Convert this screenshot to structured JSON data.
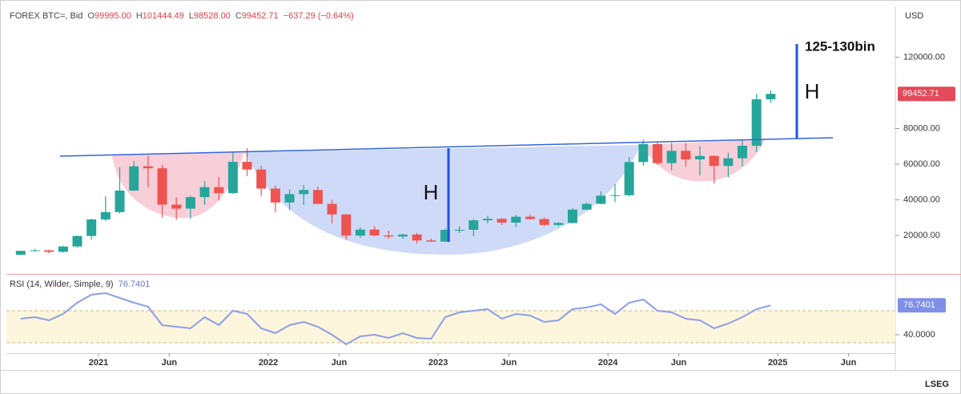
{
  "header": {
    "symbol": "FOREX BTC=, Bid",
    "ohlc": [
      {
        "label": "O",
        "value": "99995.00"
      },
      {
        "label": "H",
        "value": "101444.49"
      },
      {
        "label": "L",
        "value": "98528.00"
      },
      {
        "label": "C",
        "value": "99452.71"
      }
    ],
    "change": "−637.29 (−0.64%)"
  },
  "axis_unit": "USD",
  "logo": "LSEG",
  "chart_data": [
    {
      "type": "candlestick",
      "categories": [
        "2020-07",
        "2020-08",
        "2020-09",
        "2020-10",
        "2020-11",
        "2020-12",
        "2021-01",
        "2021-02",
        "2021-03",
        "2021-04",
        "2021-05",
        "2021-06",
        "2021-07",
        "2021-08",
        "2021-09",
        "2021-10",
        "2021-11",
        "2021-12",
        "2022-01",
        "2022-02",
        "2022-03",
        "2022-04",
        "2022-05",
        "2022-06",
        "2022-07",
        "2022-08",
        "2022-09",
        "2022-10",
        "2022-11",
        "2022-12",
        "2023-01",
        "2023-02",
        "2023-03",
        "2023-04",
        "2023-05",
        "2023-06",
        "2023-07",
        "2023-08",
        "2023-09",
        "2023-10",
        "2023-11",
        "2023-12",
        "2024-01",
        "2024-02",
        "2024-03",
        "2024-04",
        "2024-05",
        "2024-06",
        "2024-07",
        "2024-08",
        "2024-09",
        "2024-10",
        "2024-11",
        "2024-12"
      ],
      "open": [
        9130,
        11350,
        11650,
        10780,
        13800,
        19700,
        28990,
        33100,
        45200,
        58800,
        57700,
        37300,
        35040,
        41500,
        47100,
        43800,
        61300,
        57000,
        46300,
        38500,
        43200,
        45500,
        37700,
        31800,
        19900,
        23300,
        20000,
        19400,
        20500,
        17200,
        16550,
        23100,
        23150,
        28500,
        29300,
        27200,
        30500,
        29200,
        25900,
        27000,
        34500,
        37700,
        42300,
        42600,
        61200,
        71300,
        60600,
        67500,
        62700,
        64600,
        59000,
        63300,
        70300,
        96400
      ],
      "high": [
        11400,
        12470,
        12050,
        14100,
        19900,
        29300,
        41950,
        58350,
        61800,
        64850,
        59500,
        41300,
        42300,
        50500,
        52900,
        66900,
        69000,
        59100,
        48000,
        45800,
        48200,
        47400,
        40000,
        31900,
        24600,
        25200,
        22700,
        21000,
        21400,
        18300,
        23900,
        25200,
        29200,
        31000,
        29800,
        31400,
        31800,
        30200,
        27500,
        35200,
        38400,
        44700,
        48900,
        64000,
        73800,
        72700,
        71900,
        71900,
        70000,
        65000,
        66400,
        73600,
        99500,
        101444.49
      ],
      "low": [
        9000,
        10900,
        9900,
        10400,
        13200,
        17600,
        28100,
        32300,
        45000,
        47000,
        30000,
        28800,
        29300,
        37300,
        39600,
        43300,
        53300,
        42000,
        32900,
        34300,
        37200,
        37700,
        26700,
        17600,
        18800,
        19600,
        18200,
        18200,
        15500,
        16300,
        16500,
        21400,
        19600,
        26900,
        25900,
        24800,
        28900,
        25400,
        24900,
        26600,
        34100,
        37600,
        38600,
        41900,
        59100,
        59600,
        56600,
        58500,
        53500,
        49100,
        52600,
        58900,
        66800,
        94500
      ],
      "close": [
        11350,
        11650,
        10780,
        13800,
        19700,
        28990,
        33100,
        45200,
        58800,
        57700,
        37300,
        35040,
        41500,
        47100,
        43800,
        61300,
        57000,
        46300,
        38500,
        43200,
        45500,
        37700,
        31800,
        19900,
        23300,
        20000,
        19400,
        20500,
        17200,
        16550,
        23100,
        23150,
        28500,
        29300,
        27200,
        30500,
        29200,
        25900,
        27000,
        34500,
        37700,
        42300,
        42600,
        61200,
        71300,
        60600,
        67500,
        62700,
        64600,
        59000,
        63300,
        70300,
        96400,
        99452.71
      ],
      "colors": {
        "up": "#26a69a",
        "down": "#ef5350"
      },
      "ylim": [
        -1573,
        148539
      ],
      "yticks": [
        {
          "value": 20000,
          "label": "20000.00"
        },
        {
          "value": 40000,
          "label": "40000.00"
        },
        {
          "value": 60000,
          "label": "60000.00"
        },
        {
          "value": 80000,
          "label": "80000.00"
        },
        {
          "value": 120000,
          "label": "120000.00"
        }
      ],
      "annotations": [
        "H",
        "H",
        "125-130bin"
      ]
    },
    {
      "type": "line",
      "title": "RSI (14, Wilder, Simple, 9)",
      "categories": [
        "2020-07",
        "2020-08",
        "2020-09",
        "2020-10",
        "2020-11",
        "2020-12",
        "2021-01",
        "2021-02",
        "2021-03",
        "2021-04",
        "2021-05",
        "2021-06",
        "2021-07",
        "2021-08",
        "2021-09",
        "2021-10",
        "2021-11",
        "2021-12",
        "2022-01",
        "2022-02",
        "2022-03",
        "2022-04",
        "2022-05",
        "2022-06",
        "2022-07",
        "2022-08",
        "2022-09",
        "2022-10",
        "2022-11",
        "2022-12",
        "2023-01",
        "2023-02",
        "2023-03",
        "2023-04",
        "2023-05",
        "2023-06",
        "2023-07",
        "2023-08",
        "2023-09",
        "2023-10",
        "2023-11",
        "2023-12",
        "2024-01",
        "2024-02",
        "2024-03",
        "2024-04",
        "2024-05",
        "2024-06",
        "2024-07",
        "2024-08",
        "2024-09",
        "2024-10",
        "2024-11",
        "2024-12"
      ],
      "values": [
        60,
        62,
        58,
        66,
        80,
        90,
        92,
        86,
        80,
        75,
        52,
        50,
        48,
        62,
        52,
        70,
        66,
        48,
        42,
        52,
        56,
        50,
        40,
        28,
        38,
        40,
        36,
        42,
        36,
        35,
        62,
        68,
        70,
        72,
        60,
        66,
        64,
        56,
        58,
        72,
        74,
        78,
        66,
        80,
        84,
        70,
        68,
        60,
        58,
        48,
        54,
        62,
        72,
        76.7401
      ],
      "color": "#8c9eea",
      "band": [
        30,
        70
      ],
      "ylim": [
        17,
        113
      ],
      "yticks": [
        {
          "value": 40,
          "label": "40.0000"
        }
      ],
      "xticks": [
        {
          "value": "2021-01",
          "label": "2021"
        },
        {
          "value": "2021-06",
          "label": "Jun"
        },
        {
          "value": "2022-01",
          "label": "2022"
        },
        {
          "value": "2022-06",
          "label": "Jun"
        },
        {
          "value": "2023-01",
          "label": "2023"
        },
        {
          "value": "2023-06",
          "label": "Jun"
        },
        {
          "value": "2024-01",
          "label": "2024"
        },
        {
          "value": "2024-06",
          "label": "Jun"
        },
        {
          "value": "2025-01",
          "label": "2025"
        },
        {
          "value": "2025-06",
          "label": "Jun"
        }
      ]
    }
  ]
}
